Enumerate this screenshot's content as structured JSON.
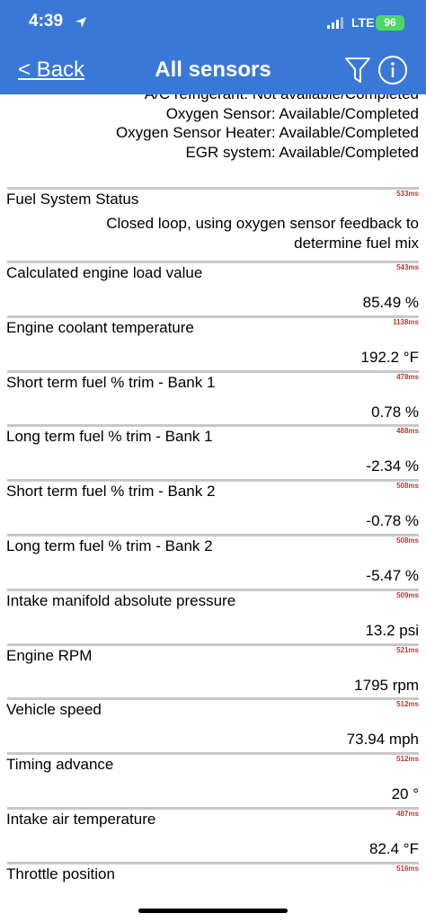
{
  "status_bar": {
    "time": "4:39",
    "network": "LTE",
    "battery": "96"
  },
  "nav": {
    "back": "< Back",
    "title": "All sensors"
  },
  "monitors": [
    "A/C refrigerant: Not available/Completed",
    "Oxygen Sensor: Available/Completed",
    "Oxygen Sensor Heater: Available/Completed",
    "EGR system: Available/Completed"
  ],
  "sensors": [
    {
      "name": "Fuel System Status",
      "latency": "533ms",
      "value": "Closed loop, using oxygen sensor feedback to determine fuel mix"
    },
    {
      "name": "Calculated engine load value",
      "latency": "543ms",
      "value": "85.49 %"
    },
    {
      "name": "Engine coolant temperature",
      "latency": "1138ms",
      "value": "192.2 °F"
    },
    {
      "name": "Short term fuel % trim - Bank 1",
      "latency": "478ms",
      "value": "0.78 %"
    },
    {
      "name": "Long term fuel % trim - Bank 1",
      "latency": "488ms",
      "value": "-2.34 %"
    },
    {
      "name": "Short term fuel % trim - Bank 2",
      "latency": "508ms",
      "value": "-0.78 %"
    },
    {
      "name": "Long term fuel % trim - Bank 2",
      "latency": "508ms",
      "value": "-5.47 %"
    },
    {
      "name": "Intake manifold absolute pressure",
      "latency": "509ms",
      "value": "13.2 psi"
    },
    {
      "name": "Engine RPM",
      "latency": "521ms",
      "value": "1795 rpm"
    },
    {
      "name": "Vehicle speed",
      "latency": "512ms",
      "value": "73.94 mph"
    },
    {
      "name": "Timing advance",
      "latency": "512ms",
      "value": "20 °"
    },
    {
      "name": "Intake air temperature",
      "latency": "487ms",
      "value": "82.4 °F"
    },
    {
      "name": "Throttle position",
      "latency": "516ms",
      "value": ""
    }
  ]
}
